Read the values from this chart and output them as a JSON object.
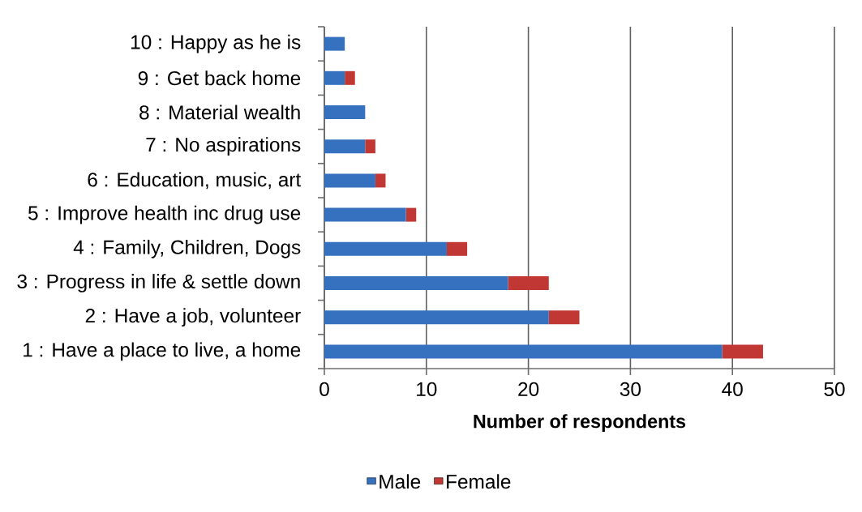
{
  "chart_data": {
    "type": "bar",
    "orientation": "horizontal",
    "stacked": true,
    "categories": [
      "10 : Happy as he is",
      "9 : Get back home",
      "8 : Material wealth",
      "7 : No aspirations",
      "6 : Education, music, art",
      "5 : Improve health inc drug use",
      "4 : Family, Children, Dogs",
      "3 : Progress in life & settle down",
      "2 : Have a job, volunteer",
      "1 : Have a place to live, a home"
    ],
    "series": [
      {
        "name": "Male",
        "color": "#3571be",
        "values": [
          2,
          2,
          4,
          4,
          5,
          8,
          12,
          18,
          22,
          39
        ]
      },
      {
        "name": "Female",
        "color": "#c13733",
        "values": [
          0,
          1,
          0,
          1,
          1,
          1,
          2,
          4,
          3,
          4
        ]
      }
    ],
    "xlabel": "Number of respondents",
    "xlim": [
      0,
      50
    ],
    "xticks": [
      0,
      10,
      20,
      30,
      40,
      50
    ],
    "grid": "x",
    "legend": "bottom"
  }
}
